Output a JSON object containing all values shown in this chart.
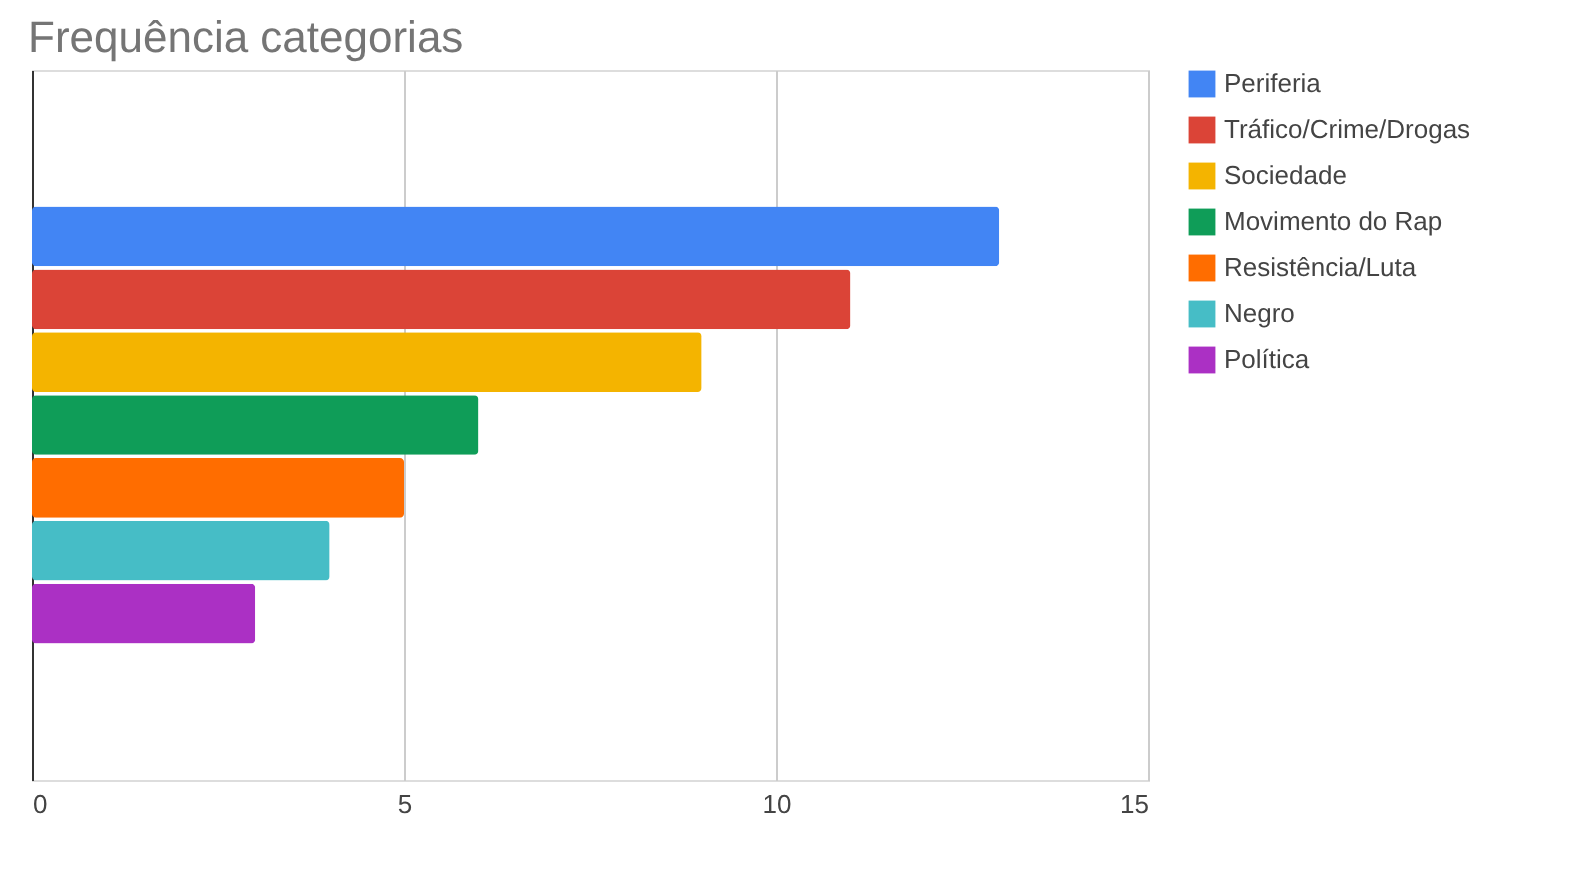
{
  "chart_data": {
    "type": "bar",
    "orientation": "horizontal",
    "title": "Frequência categorias",
    "categories": [
      null
    ],
    "series": [
      {
        "name": "Periferia",
        "color": "#4285f4",
        "values": [
          13
        ]
      },
      {
        "name": "Tráfico/Crime/Drogas",
        "color": "#db4437",
        "values": [
          11
        ]
      },
      {
        "name": "Sociedade",
        "color": "#f4b400",
        "values": [
          9
        ]
      },
      {
        "name": "Movimento do Rap",
        "color": "#0f9d58",
        "values": [
          6
        ]
      },
      {
        "name": "Resistência/Luta",
        "color": "#ff6d00",
        "values": [
          5
        ]
      },
      {
        "name": "Negro",
        "color": "#46bdc6",
        "values": [
          4
        ]
      },
      {
        "name": "Política",
        "color": "#ab30c4",
        "values": [
          3
        ]
      }
    ],
    "xlim": [
      0,
      15
    ],
    "xticks": [
      0,
      5,
      10,
      15
    ],
    "grid": "x",
    "legend": "right"
  }
}
